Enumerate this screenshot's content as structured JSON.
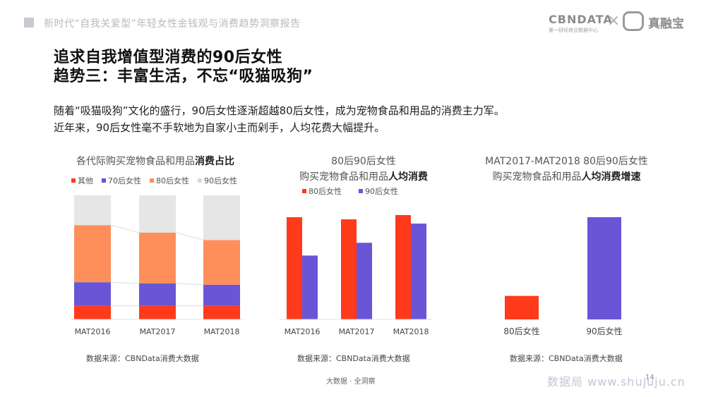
{
  "header": {
    "report_title": "新时代“自我关爱型”年轻女性金钱观与消费趋势洞察报告",
    "logo_cbn": "CBNDATA",
    "logo_cbn_sub": "第一财经商业数据中心",
    "logo_x": "×",
    "logo_partner": "真融宝"
  },
  "main": {
    "title_line1": "追求自我增值型消费的90后女性",
    "title_line2": "趋势三：丰富生活，不忘“吸猫吸狗”",
    "desc_line1": "随着“吸猫吸狗”文化的盛行，90后女性逐渐超越80后女性，成为宠物食品和用品的消费主力军。",
    "desc_line2": "近年来，90后女性毫不手软地为自家小主而剁手，人均花费大幅提升。"
  },
  "charts_text": {
    "c1_title_plain": "各代际购买宠物食品和用品",
    "c1_title_bold": "消费占比",
    "c2_title_line1": "80后90后女性",
    "c2_title_plain": "购买宠物食品和用品",
    "c2_title_bold": "人均消费",
    "c3_title_line1": "MAT2017-MAT2018 80后90后女性",
    "c3_title_plain": "购买宠物食品和用品",
    "c3_title_bold": "人均消费增速",
    "source": "数据来源：CBNData消费大数据"
  },
  "footer": {
    "text": "大数据 · 全洞察",
    "watermark": "数据局 www.shujuju.cn",
    "page": "14"
  },
  "colors": {
    "other": "#ff3a1a",
    "post70": "#6a55d6",
    "post80": "#ff8f5a",
    "post90": "#e6e6e6",
    "bar80": "#ff3a1a",
    "bar90": "#6a55d6"
  },
  "chart_data": [
    {
      "type": "bar",
      "stacked": true,
      "percent": true,
      "categories": [
        "MAT2016",
        "MAT2017",
        "MAT2018"
      ],
      "series": [
        {
          "name": "其他",
          "values": [
            11,
            11,
            11
          ]
        },
        {
          "name": "70后女性",
          "values": [
            19,
            18,
            17
          ]
        },
        {
          "name": "80后女性",
          "values": [
            46,
            41,
            36
          ]
        },
        {
          "name": "90后女性",
          "values": [
            24,
            30,
            36
          ]
        }
      ],
      "ylim": [
        0,
        100
      ],
      "legend": "top"
    },
    {
      "type": "bar",
      "categories": [
        "MAT2016",
        "MAT2017",
        "MAT2018"
      ],
      "series": [
        {
          "name": "80后女性",
          "values": [
            96,
            94,
            98
          ]
        },
        {
          "name": "90后女性",
          "values": [
            60,
            72,
            90
          ]
        }
      ],
      "ylim": [
        0,
        100
      ],
      "legend": "top"
    },
    {
      "type": "bar",
      "categories": [
        "80后女性",
        "90后女性"
      ],
      "values": [
        23,
        100
      ],
      "ylim": [
        0,
        100
      ]
    }
  ]
}
